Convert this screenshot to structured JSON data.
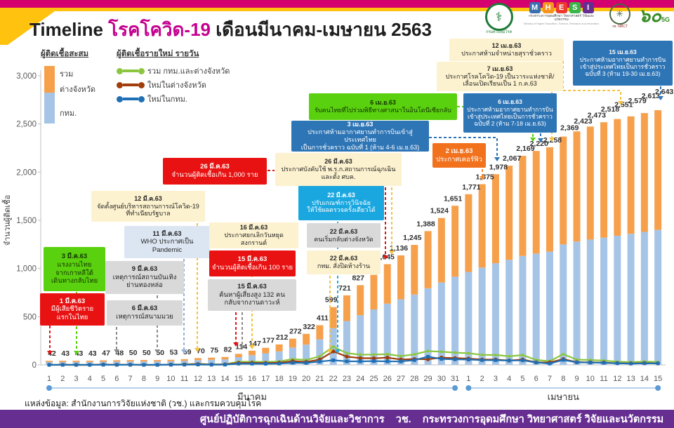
{
  "header": {
    "title_en": "Timeline",
    "title_disease": "โรคโควิด-19",
    "title_period": "เดือนมีนาคม-เมษายน 2563"
  },
  "logos": {
    "ddc_glyph": "⚕",
    "ddc_label": "กรมควบคุมโรค",
    "mhesi_letters": {
      "m": "M",
      "h": "H",
      "e": "E",
      "s": "S",
      "i": "I"
    },
    "mhesi_line1": "กระทรวงการอุดมศึกษา วิทยาศาสตร์ วิจัยและนวัตกรรม",
    "mhesi_line2": "Ministry of Higher Education, Science, Research and Innovation",
    "nrct_glyph": "✳",
    "nrct_label": "วช. NRCT",
    "sixty_label": "๖๐",
    "sixty_sub": "5G"
  },
  "legend": {
    "bars_title": "ผู้ติดเชื้อสะสม",
    "lines_title": "ผู้ติดเชื้อรายใหม่ รายวัน",
    "bar_total": "รวม",
    "bar_provinces": "ต่างจังหวัด",
    "bar_bkk": "กทม.",
    "line_total": "รวม กทม.และต่างจังหวัด",
    "line_provinces": "ใหม่ในต่างจังหวัด",
    "line_bkk": "ใหม่ในกทม."
  },
  "colors": {
    "bar_provinces": "#f7a04c",
    "bar_bkk": "#a6c4e6",
    "line_total": "#8cc63f",
    "line_provinces": "#a13d09",
    "line_bkk": "#1f6fb5",
    "axis": "#bfbfbf",
    "tick_text": "#595959",
    "value_text": "#303030",
    "bracket_line": "#9cc3e5",
    "bracket_dot": "#5b9bd5",
    "gold_arrow": "#f5c242",
    "accent_magenta": "#d4006e",
    "footer_purple": "#662e91"
  },
  "chart_data": {
    "type": "bar",
    "title": "Timeline โรคโควิด-19 เดือนมีนาคม-เมษายน 2563",
    "ylabel": "จำนวนผู้ติดเชื้อ",
    "ylim": [
      0,
      3000
    ],
    "ytick_labels": [
      "0",
      "500",
      "1,000",
      "1,500",
      "2,000",
      "2,500",
      "3,000"
    ],
    "ytick_values": [
      0,
      500,
      1000,
      1500,
      2000,
      2500,
      3000
    ],
    "grid": false,
    "months": [
      {
        "label": "มีนาคม",
        "start": 0,
        "end": 30
      },
      {
        "label": "เมษายน",
        "start": 31,
        "end": 45
      }
    ],
    "day_labels": [
      "1",
      "2",
      "3",
      "4",
      "5",
      "6",
      "7",
      "8",
      "9",
      "10",
      "11",
      "12",
      "13",
      "14",
      "15",
      "16",
      "17",
      "18",
      "19",
      "20",
      "21",
      "22",
      "23",
      "24",
      "25",
      "26",
      "27",
      "28",
      "29",
      "30",
      "31",
      "1",
      "2",
      "3",
      "4",
      "5",
      "6",
      "7",
      "8",
      "9",
      "10",
      "11",
      "12",
      "13",
      "14",
      "15"
    ],
    "series": [
      {
        "name": "ผู้ติดเชื้อสะสม รวม",
        "role": "bar_total_labels",
        "values": [
          42,
          43,
          43,
          43,
          47,
          48,
          50,
          50,
          50,
          53,
          59,
          70,
          75,
          82,
          114,
          147,
          177,
          212,
          272,
          322,
          411,
          599,
          721,
          827,
          934,
          1045,
          1136,
          1245,
          1388,
          1524,
          1651,
          1771,
          1875,
          1978,
          2067,
          2169,
          2220,
          2258,
          2369,
          2423,
          2473,
          2518,
          2551,
          2579,
          2613,
          2643
        ]
      },
      {
        "name": "ผู้ติดเชื้อสะสม กทม. (ประมาณจากกราฟ)",
        "role": "bar_bottom",
        "values": [
          29,
          30,
          30,
          30,
          33,
          34,
          35,
          35,
          35,
          37,
          41,
          49,
          53,
          57,
          80,
          100,
          120,
          140,
          180,
          210,
          265,
          380,
          455,
          515,
          575,
          635,
          680,
          730,
          795,
          855,
          915,
          965,
          1010,
          1055,
          1090,
          1130,
          1155,
          1175,
          1250,
          1280,
          1300,
          1320,
          1340,
          1360,
          1380,
          1400
        ]
      },
      {
        "name": "รายใหม่ รวม กทม.และต่างจังหวัด",
        "role": "line_total",
        "values": [
          0,
          1,
          0,
          0,
          4,
          1,
          2,
          0,
          0,
          3,
          6,
          11,
          5,
          7,
          32,
          33,
          30,
          35,
          60,
          50,
          89,
          188,
          122,
          106,
          107,
          111,
          91,
          109,
          143,
          136,
          127,
          120,
          104,
          103,
          89,
          102,
          51,
          38,
          111,
          54,
          50,
          45,
          33,
          28,
          34,
          30
        ]
      },
      {
        "name": "รายใหม่ในต่างจังหวัด (ประมาณจากกราฟ)",
        "role": "line_provinces",
        "values": [
          0,
          1,
          0,
          0,
          3,
          1,
          1,
          0,
          0,
          2,
          4,
          8,
          3,
          5,
          20,
          21,
          19,
          22,
          38,
          30,
          55,
          140,
          85,
          70,
          68,
          75,
          55,
          60,
          58,
          75,
          70,
          65,
          55,
          55,
          45,
          55,
          26,
          25,
          60,
          28,
          26,
          24,
          17,
          15,
          18,
          15
        ]
      },
      {
        "name": "รายใหม่ในกทม. (ประมาณจากกราฟ)",
        "role": "line_bkk",
        "values": [
          0,
          0,
          0,
          0,
          1,
          0,
          1,
          0,
          0,
          1,
          2,
          3,
          2,
          2,
          12,
          12,
          11,
          13,
          22,
          20,
          34,
          48,
          37,
          36,
          39,
          36,
          36,
          49,
          85,
          61,
          57,
          55,
          49,
          48,
          44,
          47,
          25,
          13,
          51,
          26,
          24,
          21,
          16,
          13,
          16,
          15
        ]
      }
    ]
  },
  "annotations": [
    {
      "date": "1 มี.ค.63",
      "text": "มีผู้เสียชีวิตราย\nแรกในไทย"
    },
    {
      "date": "3 มี.ค.63",
      "text": "แรงงานไทย\nจากเกาหลีใต้\nเดินทางกลับไทย"
    },
    {
      "date": "6 มี.ค.63",
      "text": "เหตุการณ์สนามมวย"
    },
    {
      "date": "9 มี.ค.63",
      "text": "เหตุการณ์สถานบันเทิง\nย่านทองหล่อ"
    },
    {
      "date": "11 มี.ค.63",
      "text": "WHO ประกาศเป็น\nPandemic"
    },
    {
      "date": "12 มี.ค.63",
      "text": "จัดตั้งศูนย์บริหารสถานการณ์โควิด-19\nที่ทำเนียบรัฐบาล"
    },
    {
      "date": "15 มี.ค.63",
      "text": "จำนวนผู้ติดเชื้อเกิน 100 ราย"
    },
    {
      "date": "15 มี.ค.63",
      "text": "ค้นหาผู้เสี่ยงสูง 132 คน\nกลับจากงานดาวะห์"
    },
    {
      "date": "16 มี.ค.63",
      "text": "ประกาศยกเลิกวันหยุดสงกรานต์"
    },
    {
      "date": "22 มี.ค.63",
      "text": "ปรับเกณฑ์การวินิจฉัย\nให้ใช้ผลตรวจครั้งเดียวได้"
    },
    {
      "date": "22 มี.ค.63",
      "text": "คนเริ่มกลับต่างจังหวัด"
    },
    {
      "date": "22 มี.ค.63",
      "text": "กทม. สั่งปิดห้างร้าน"
    },
    {
      "date": "26 มี.ค.63",
      "text": "จำนวนผู้ติดเชื้อเกิน 1,000 ราย"
    },
    {
      "date": "26 มี.ค.63",
      "text": "ประกาศบังคับใช้ พ.ร.ก.สถานการณ์ฉุกเฉิน\nและตั้ง ศบค."
    },
    {
      "date": "2 เม.ย.63",
      "text": "ประกาศเคอร์ฟิว"
    },
    {
      "date": "3 เม.ย.63",
      "text": "ประกาศห้ามอากาศยานทำการบินเข้าสู่ประเทศไทย\nเป็นการชั่วคราว ฉบับที่ 1 (ห้าม 4-6 เม.ย.63)"
    },
    {
      "date": "6 เม.ย.63",
      "text": "รับคนไทยที่ไปร่วมพิธีทางศาสนาในอินโดนีเซียกลับ"
    },
    {
      "date": "6 เม.ย.63",
      "text": "ประกาศห้ามอากาศยานทำการบิน\nเข้าสู่ประเทศไทยเป็นการชั่วคราว\nฉบับที่ 2 (ห้าม 7-18 เม.ย.63)"
    },
    {
      "date": "7 เม.ย.63",
      "text": "ประกาศโรคโควิด-19 เป็นวาระแห่งชาติ/\nเลื่อนเปิดเรียนเป็น 1 ก.ค.63"
    },
    {
      "date": "12 เม.ย.63",
      "text": "ประกาศห้ามจำหน่ายสุราชั่วคราว"
    },
    {
      "date": "15 เม.ย.63",
      "text": "ประกาศห้ามอากาศยานทำการบิน\nเข้าสู่ประเทศไทยเป็นการชั่วคราว\nฉบับที่ 3 (ห้าม 19-30 เม.ย.63)"
    }
  ],
  "source_note": "แหล่งข้อมูล: สำนักงานการวิจัยแห่งชาติ (วช.) และกรมควบคุมโรค",
  "footer": "ศูนย์ปฏิบัติการฉุกเฉินด้านวิจัยและวิชาการ    วช.    กระทรวงการอุดมศึกษา วิทยาศาสตร์ วิจัยและนวัตกรรม"
}
